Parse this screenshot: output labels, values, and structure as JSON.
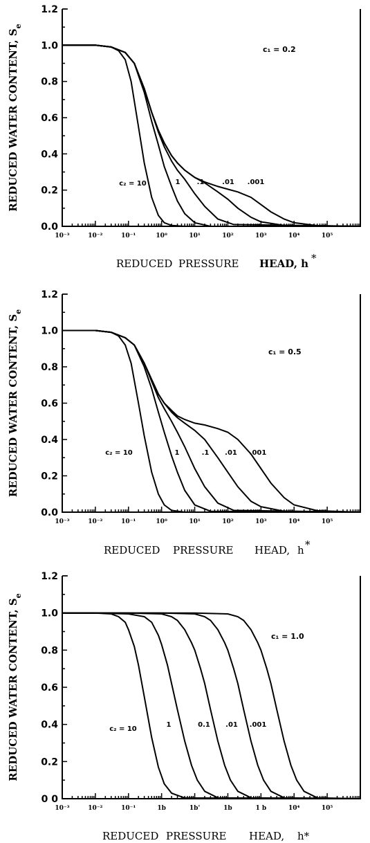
{
  "chart_data": [
    {
      "type": "line",
      "title": "",
      "xlabel_parts": [
        "REDUCED",
        "PRESSURE",
        "HEAD, h"
      ],
      "xlabel_superscript": "*",
      "ylabel": "REDUCED WATER CONTENT, S",
      "ylabel_subscript": "e",
      "xscale": "log",
      "xlim": [
        0.001,
        1000000
      ],
      "ylim": [
        0,
        1.2
      ],
      "yticks": [
        "0.0",
        "0.2",
        "0.4",
        "0.6",
        "0.8",
        "1.0",
        "1.2"
      ],
      "xticks": [
        "10⁻³",
        "10⁻²",
        "10⁻¹",
        "10⁰",
        "10¹",
        "10²",
        "10³",
        "10⁴",
        "10⁵"
      ],
      "c1_label": "c₁ = 0.2",
      "grid": false,
      "series": [
        {
          "name": "10",
          "x": [
            0.001,
            0.01,
            0.03,
            0.05,
            0.08,
            0.12,
            0.2,
            0.3,
            0.5,
            0.8,
            1.2,
            2,
            5,
            20,
            1000000
          ],
          "y": [
            1.0,
            1.0,
            0.99,
            0.97,
            0.92,
            0.8,
            0.55,
            0.35,
            0.16,
            0.06,
            0.02,
            0.005,
            0.0,
            0.0,
            0.0
          ]
        },
        {
          "name": "1",
          "x": [
            0.001,
            0.01,
            0.03,
            0.08,
            0.15,
            0.3,
            0.5,
            0.8,
            1.2,
            2,
            3,
            5,
            10,
            30,
            1000000
          ],
          "y": [
            1.0,
            1.0,
            0.99,
            0.96,
            0.9,
            0.74,
            0.58,
            0.45,
            0.33,
            0.22,
            0.14,
            0.07,
            0.02,
            0.0,
            0.0
          ]
        },
        {
          "name": ".1",
          "x": [
            0.001,
            0.01,
            0.03,
            0.08,
            0.15,
            0.3,
            0.5,
            0.8,
            1.2,
            2,
            3,
            5,
            10,
            20,
            50,
            150,
            1000000
          ],
          "y": [
            1.0,
            1.0,
            0.99,
            0.96,
            0.9,
            0.76,
            0.63,
            0.52,
            0.44,
            0.36,
            0.31,
            0.26,
            0.18,
            0.11,
            0.04,
            0.01,
            0.0
          ]
        },
        {
          "name": ".01",
          "x": [
            0.001,
            0.01,
            0.03,
            0.08,
            0.15,
            0.3,
            0.5,
            0.8,
            1.2,
            2,
            3,
            5,
            10,
            20,
            50,
            100,
            200,
            500,
            1000,
            5000,
            1000000
          ],
          "y": [
            1.0,
            1.0,
            0.99,
            0.96,
            0.9,
            0.76,
            0.63,
            0.53,
            0.46,
            0.39,
            0.35,
            0.31,
            0.27,
            0.24,
            0.19,
            0.15,
            0.1,
            0.05,
            0.025,
            0.005,
            0.0
          ]
        },
        {
          "name": ".001",
          "x": [
            0.001,
            0.01,
            0.03,
            0.08,
            0.15,
            0.3,
            0.5,
            0.8,
            1.2,
            2,
            3,
            5,
            10,
            20,
            50,
            100,
            200,
            500,
            1000,
            2000,
            5000,
            10000,
            50000,
            1000000
          ],
          "y": [
            1.0,
            1.0,
            0.99,
            0.96,
            0.9,
            0.76,
            0.63,
            0.53,
            0.46,
            0.39,
            0.35,
            0.31,
            0.27,
            0.245,
            0.22,
            0.205,
            0.19,
            0.16,
            0.12,
            0.08,
            0.04,
            0.02,
            0.004,
            0.0
          ]
        }
      ],
      "curve_labels": [
        "c₂ = 10",
        "1",
        ".1",
        ".01",
        ".001"
      ]
    },
    {
      "type": "line",
      "title": "",
      "xlabel_parts": [
        "REDUCED",
        "PRESSURE",
        "HEAD,",
        "h"
      ],
      "xlabel_superscript": "*",
      "ylabel": "REDUCED WATER CONTENT, S",
      "ylabel_subscript": "e",
      "xscale": "log",
      "xlim": [
        0.001,
        1000000
      ],
      "ylim": [
        0,
        1.2
      ],
      "yticks": [
        "0.0",
        "0.2",
        "0.4",
        "0.6",
        "0.8",
        "1.0",
        "1.2"
      ],
      "xticks": [
        "10⁻³",
        "10⁻²",
        "10⁻¹",
        "10⁰",
        "10¹",
        "10²",
        "10³",
        "10⁴",
        "10⁵"
      ],
      "c1_label": "c₁ = 0.5",
      "grid": false,
      "series": [
        {
          "name": "10",
          "x": [
            0.001,
            0.01,
            0.03,
            0.05,
            0.08,
            0.12,
            0.2,
            0.3,
            0.5,
            0.8,
            1.2,
            2,
            5,
            20,
            1000000
          ],
          "y": [
            1.0,
            1.0,
            0.99,
            0.97,
            0.92,
            0.82,
            0.6,
            0.42,
            0.22,
            0.1,
            0.04,
            0.01,
            0.0,
            0.0,
            0.0
          ]
        },
        {
          "name": "1",
          "x": [
            0.001,
            0.01,
            0.03,
            0.08,
            0.15,
            0.3,
            0.5,
            0.8,
            1.2,
            2,
            3,
            5,
            10,
            30,
            1000000
          ],
          "y": [
            1.0,
            1.0,
            0.99,
            0.96,
            0.92,
            0.8,
            0.68,
            0.55,
            0.44,
            0.31,
            0.22,
            0.12,
            0.04,
            0.005,
            0.0
          ]
        },
        {
          "name": ".1",
          "x": [
            0.001,
            0.01,
            0.03,
            0.08,
            0.15,
            0.3,
            0.5,
            0.8,
            1.2,
            2,
            3,
            5,
            10,
            20,
            50,
            150,
            1000000
          ],
          "y": [
            1.0,
            1.0,
            0.99,
            0.96,
            0.92,
            0.82,
            0.72,
            0.63,
            0.57,
            0.5,
            0.44,
            0.36,
            0.24,
            0.14,
            0.05,
            0.01,
            0.0
          ]
        },
        {
          "name": ".01",
          "x": [
            0.001,
            0.01,
            0.03,
            0.08,
            0.15,
            0.3,
            0.5,
            0.8,
            1.2,
            2,
            3,
            5,
            10,
            20,
            50,
            100,
            200,
            500,
            1000,
            5000,
            1000000
          ],
          "y": [
            1.0,
            1.0,
            0.99,
            0.96,
            0.92,
            0.82,
            0.73,
            0.65,
            0.6,
            0.55,
            0.52,
            0.49,
            0.45,
            0.4,
            0.3,
            0.22,
            0.14,
            0.06,
            0.03,
            0.005,
            0.0
          ]
        },
        {
          "name": ".001",
          "x": [
            0.001,
            0.01,
            0.03,
            0.08,
            0.15,
            0.3,
            0.5,
            0.8,
            1.2,
            2,
            3,
            5,
            10,
            20,
            50,
            100,
            200,
            500,
            1000,
            2000,
            5000,
            10000,
            50000,
            1000000
          ],
          "y": [
            1.0,
            1.0,
            0.99,
            0.96,
            0.92,
            0.82,
            0.73,
            0.65,
            0.6,
            0.56,
            0.53,
            0.51,
            0.49,
            0.48,
            0.46,
            0.44,
            0.4,
            0.32,
            0.24,
            0.16,
            0.08,
            0.04,
            0.008,
            0.0
          ]
        }
      ],
      "curve_labels": [
        "c₂ = 10",
        "1",
        ".1",
        ".01",
        ".001"
      ]
    },
    {
      "type": "line",
      "title": "",
      "xlabel_parts": [
        "REDUCED",
        "PRESSURE",
        "HEAD,",
        "h*"
      ],
      "xlabel_superscript": "",
      "ylabel": "REDUCED WATER CONTENT, S",
      "ylabel_subscript": "e",
      "xscale": "log",
      "xlim": [
        0.001,
        1000000
      ],
      "ylim": [
        0,
        1.2
      ],
      "yticks": [
        "0 0",
        "0.2",
        "0.4",
        "0.6",
        "0.8",
        "1.0",
        "1.2"
      ],
      "xticks": [
        "10⁻³",
        "10⁻²",
        "10⁻¹",
        "1b",
        "1b'",
        "1b",
        "1 b",
        "10⁴",
        "10⁵"
      ],
      "c1_label": "c₁ = 1.0",
      "grid": false,
      "series": [
        {
          "name": "10",
          "x": [
            0.001,
            0.01,
            0.03,
            0.05,
            0.08,
            0.1,
            0.15,
            0.2,
            0.3,
            0.5,
            0.8,
            1.2,
            2,
            5,
            1000000
          ],
          "y": [
            1.0,
            1.0,
            0.995,
            0.98,
            0.95,
            0.91,
            0.82,
            0.72,
            0.55,
            0.33,
            0.17,
            0.08,
            0.03,
            0.004,
            0.0
          ]
        },
        {
          "name": "1",
          "x": [
            0.001,
            0.01,
            0.1,
            0.3,
            0.5,
            0.8,
            1,
            1.5,
            2,
            3,
            5,
            8,
            12,
            20,
            50,
            1000000
          ],
          "y": [
            1.0,
            1.0,
            0.995,
            0.98,
            0.95,
            0.88,
            0.83,
            0.72,
            0.62,
            0.48,
            0.31,
            0.18,
            0.1,
            0.04,
            0.005,
            0.0
          ]
        },
        {
          "name": "0.1",
          "x": [
            0.001,
            0.01,
            0.1,
            1,
            2,
            3,
            5,
            8,
            10,
            15,
            20,
            30,
            50,
            80,
            120,
            200,
            500,
            1000000
          ],
          "y": [
            1.0,
            1.0,
            1.0,
            0.995,
            0.98,
            0.96,
            0.91,
            0.84,
            0.8,
            0.7,
            0.62,
            0.48,
            0.31,
            0.18,
            0.1,
            0.04,
            0.005,
            0.0
          ]
        },
        {
          "name": ".01",
          "x": [
            0.001,
            0.1,
            1,
            10,
            20,
            30,
            50,
            80,
            100,
            150,
            200,
            300,
            500,
            800,
            1200,
            2000,
            5000,
            1000000
          ],
          "y": [
            1.0,
            1.0,
            1.0,
            0.995,
            0.98,
            0.96,
            0.91,
            0.84,
            0.8,
            0.7,
            0.62,
            0.48,
            0.31,
            0.18,
            0.1,
            0.04,
            0.005,
            0.0
          ]
        },
        {
          "name": ".001",
          "x": [
            0.001,
            1,
            10,
            100,
            200,
            300,
            500,
            800,
            1000,
            1500,
            2000,
            3000,
            5000,
            8000,
            12000,
            20000,
            50000,
            1000000
          ],
          "y": [
            1.0,
            1.0,
            1.0,
            0.995,
            0.98,
            0.96,
            0.91,
            0.84,
            0.8,
            0.7,
            0.62,
            0.48,
            0.31,
            0.18,
            0.1,
            0.04,
            0.005,
            0.0
          ]
        }
      ],
      "curve_labels": [
        "c₂ = 10",
        "1",
        "0.1",
        ".01",
        ".001"
      ]
    }
  ]
}
